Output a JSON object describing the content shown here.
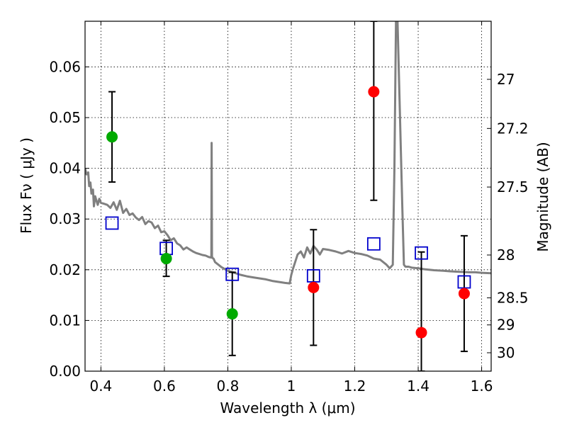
{
  "chart_data": {
    "type": "scatter",
    "title": "",
    "xlabel": "Wavelength  λ (μm)",
    "ylabel_left": "Flux  Fν  ( μJy )",
    "ylabel_right": "Magnitude (AB)",
    "xlim": [
      0.35,
      1.63
    ],
    "ylim": [
      0.0,
      0.069
    ],
    "grid": true,
    "x_ticks": [
      0.4,
      0.6,
      0.8,
      1.0,
      1.2,
      1.4,
      1.6
    ],
    "x_tick_labels": [
      "0.4",
      "0.6",
      "0.8",
      "1",
      "1.2",
      "1.4",
      "1.6"
    ],
    "y_ticks": [
      0.0,
      0.01,
      0.02,
      0.03,
      0.04,
      0.05,
      0.06
    ],
    "y_tick_labels": [
      "0.00",
      "0.01",
      "0.02",
      "0.03",
      "0.04",
      "0.05",
      "0.06"
    ],
    "right_axis": {
      "scale": "AB magnitude",
      "ticks": [
        27,
        27.2,
        27.5,
        28,
        28.5,
        29,
        30
      ],
      "tick_labels": [
        "27",
        "27.2",
        "27.5",
        "28",
        "28.5",
        "29",
        "30"
      ]
    },
    "colors": {
      "green": "#00aa00",
      "red": "#ff0000",
      "model": "#808080",
      "model_box": "#0000cc",
      "errorbar": "#000000"
    },
    "series": [
      {
        "marker": "green-circle",
        "points": [
          {
            "x": 0.435,
            "y": 0.0462,
            "ylo": 0.0373,
            "yhi": 0.0551
          },
          {
            "x": 0.606,
            "y": 0.0222,
            "ylo": 0.0187,
            "yhi": 0.0258
          },
          {
            "x": 0.814,
            "y": 0.0113,
            "ylo": 0.0031,
            "yhi": 0.0195
          }
        ]
      },
      {
        "marker": "red-circle",
        "points": [
          {
            "x": 1.07,
            "y": 0.0165,
            "ylo": 0.0051,
            "yhi": 0.0279
          },
          {
            "x": 1.26,
            "y": 0.0551,
            "ylo": 0.0337,
            "yhi": 0.069
          },
          {
            "x": 1.41,
            "y": 0.0076,
            "ylo": 0.0,
            "yhi": 0.0235
          },
          {
            "x": 1.545,
            "y": 0.0153,
            "ylo": 0.0039,
            "yhi": 0.0267
          }
        ]
      },
      {
        "marker": "blue-open-square",
        "points": [
          {
            "x": 0.435,
            "y": 0.0292
          },
          {
            "x": 0.606,
            "y": 0.0242
          },
          {
            "x": 0.814,
            "y": 0.0191
          },
          {
            "x": 1.07,
            "y": 0.0188
          },
          {
            "x": 1.26,
            "y": 0.0251
          },
          {
            "x": 1.41,
            "y": 0.0233
          },
          {
            "x": 1.545,
            "y": 0.0176
          }
        ]
      },
      {
        "marker": "grey-line",
        "x": [
          0.35,
          0.355,
          0.36,
          0.363,
          0.367,
          0.37,
          0.375,
          0.378,
          0.382,
          0.385,
          0.39,
          0.395,
          0.4,
          0.41,
          0.42,
          0.43,
          0.44,
          0.45,
          0.46,
          0.47,
          0.48,
          0.49,
          0.5,
          0.51,
          0.52,
          0.53,
          0.54,
          0.55,
          0.56,
          0.57,
          0.58,
          0.59,
          0.6,
          0.61,
          0.62,
          0.63,
          0.64,
          0.65,
          0.66,
          0.67,
          0.68,
          0.69,
          0.7,
          0.71,
          0.72,
          0.73,
          0.74,
          0.748,
          0.749,
          0.75,
          0.752,
          0.755,
          0.76,
          0.78,
          0.8,
          0.82,
          0.84,
          0.86,
          0.88,
          0.9,
          0.92,
          0.94,
          0.96,
          0.98,
          0.995,
          1.0,
          1.005,
          1.02,
          1.03,
          1.04,
          1.05,
          1.06,
          1.07,
          1.08,
          1.09,
          1.1,
          1.12,
          1.14,
          1.16,
          1.18,
          1.2,
          1.22,
          1.24,
          1.26,
          1.28,
          1.3,
          1.31,
          1.32,
          1.325,
          1.33,
          1.335,
          1.35,
          1.355,
          1.36,
          1.37,
          1.38,
          1.4,
          1.42,
          1.45,
          1.48,
          1.5,
          1.53,
          1.56,
          1.58,
          1.6,
          1.63
        ],
        "y": [
          0.04,
          0.0388,
          0.0392,
          0.0365,
          0.0372,
          0.035,
          0.0358,
          0.0325,
          0.0345,
          0.0338,
          0.0328,
          0.034,
          0.0332,
          0.033,
          0.0328,
          0.0322,
          0.0333,
          0.0318,
          0.0336,
          0.0312,
          0.032,
          0.0308,
          0.0311,
          0.0303,
          0.0298,
          0.0304,
          0.029,
          0.0296,
          0.0293,
          0.0282,
          0.0287,
          0.0274,
          0.0276,
          0.0268,
          0.0258,
          0.0262,
          0.0252,
          0.0248,
          0.024,
          0.0244,
          0.024,
          0.0236,
          0.0233,
          0.0231,
          0.0229,
          0.0228,
          0.0225,
          0.0224,
          0.045,
          0.0226,
          0.0223,
          0.0222,
          0.0215,
          0.0205,
          0.0198,
          0.0194,
          0.019,
          0.0187,
          0.0185,
          0.0183,
          0.0181,
          0.0178,
          0.0176,
          0.0174,
          0.0173,
          0.019,
          0.0201,
          0.023,
          0.0236,
          0.0224,
          0.0244,
          0.0232,
          0.0247,
          0.024,
          0.023,
          0.0241,
          0.0239,
          0.0236,
          0.0232,
          0.0237,
          0.0233,
          0.0231,
          0.0228,
          0.0222,
          0.022,
          0.021,
          0.0203,
          0.021,
          0.04,
          0.069,
          0.069,
          0.032,
          0.021,
          0.0206,
          0.0206,
          0.0204,
          0.0203,
          0.0201,
          0.0199,
          0.0198,
          0.0197,
          0.0196,
          0.0195,
          0.0195,
          0.0194,
          0.0193
        ]
      }
    ]
  }
}
